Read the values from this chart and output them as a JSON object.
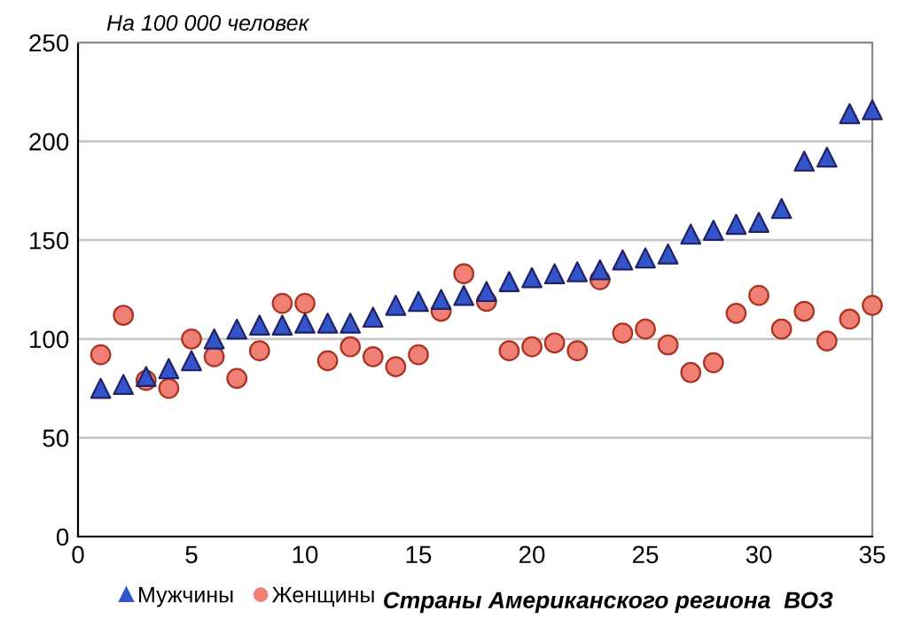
{
  "chart_data": {
    "type": "scatter",
    "title": "На 100 000 человек",
    "xlabel": "Страны Американского региона  ВОЗ",
    "x": [
      1,
      2,
      3,
      4,
      5,
      6,
      7,
      8,
      9,
      10,
      11,
      12,
      13,
      14,
      15,
      16,
      17,
      18,
      19,
      20,
      21,
      22,
      23,
      24,
      25,
      26,
      27,
      28,
      29,
      30,
      31,
      32,
      33,
      34,
      35
    ],
    "series": [
      {
        "name": "Мужчины",
        "color": "#3355cc",
        "marker": "triangle",
        "values": [
          75,
          77,
          81,
          85,
          89,
          100,
          105,
          107,
          107,
          108,
          108,
          108,
          111,
          117,
          119,
          120,
          122,
          124,
          129,
          131,
          133,
          134,
          135,
          140,
          141,
          143,
          153,
          155,
          158,
          159,
          166,
          190,
          192,
          214,
          216
        ]
      },
      {
        "name": "Женщины",
        "color": "#f08075",
        "marker": "circle",
        "values": [
          92,
          112,
          79,
          75,
          100,
          91,
          80,
          94,
          118,
          118,
          89,
          96,
          91,
          86,
          92,
          114,
          133,
          119,
          94,
          96,
          98,
          94,
          130,
          103,
          105,
          97,
          83,
          88,
          113,
          122,
          105,
          114,
          99,
          110,
          117
        ]
      }
    ],
    "xlim": [
      0,
      35
    ],
    "xticks": [
      0,
      5,
      10,
      15,
      20,
      25,
      30,
      35
    ],
    "ylim": [
      0,
      250
    ],
    "yticks": [
      0,
      50,
      100,
      150,
      200,
      250
    ],
    "grid": "y",
    "legend": "bottom left"
  }
}
